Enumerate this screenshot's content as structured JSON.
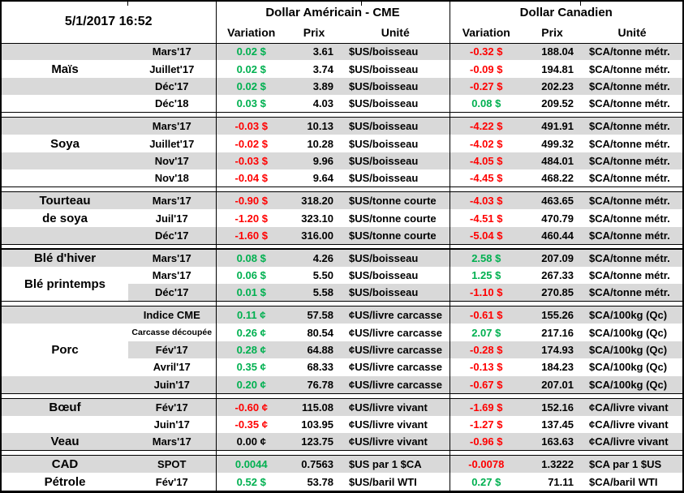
{
  "timestamp": "5/1/2017 16:52",
  "groups": {
    "us": "Dollar Américain - CME",
    "ca": "Dollar Canadien"
  },
  "columns": {
    "variation": "Variation",
    "prix": "Prix",
    "unite": "Unité"
  },
  "colors": {
    "positive": "#00B050",
    "negative": "#FF0000",
    "neutral": "#000000",
    "stripe": "#D9D9D9",
    "grid": "#000000"
  },
  "sections": [
    {
      "name": "mais",
      "rows": [
        {
          "month": "Mars'17",
          "us": {
            "var": "0.02 $",
            "dir": "pos",
            "prix": "3.61",
            "unit": "$US/boisseau"
          },
          "ca": {
            "var": "-0.32 $",
            "dir": "neg",
            "prix": "188.04",
            "unit": "$CA/tonne métr."
          }
        },
        {
          "label": {
            "text": "Maïs"
          },
          "month": "Juillet'17",
          "us": {
            "var": "0.02 $",
            "dir": "pos",
            "prix": "3.74",
            "unit": "$US/boisseau"
          },
          "ca": {
            "var": "-0.09 $",
            "dir": "neg",
            "prix": "194.81",
            "unit": "$CA/tonne métr."
          }
        },
        {
          "month": "Déc'17",
          "us": {
            "var": "0.02 $",
            "dir": "pos",
            "prix": "3.89",
            "unit": "$US/boisseau"
          },
          "ca": {
            "var": "-0.27 $",
            "dir": "neg",
            "prix": "202.23",
            "unit": "$CA/tonne métr."
          }
        },
        {
          "month": "Déc'18",
          "us": {
            "var": "0.03 $",
            "dir": "pos",
            "prix": "4.03",
            "unit": "$US/boisseau"
          },
          "ca": {
            "var": "0.08 $",
            "dir": "pos",
            "prix": "209.52",
            "unit": "$CA/tonne métr."
          }
        }
      ]
    },
    {
      "name": "soya",
      "rows": [
        {
          "month": "Mars'17",
          "us": {
            "var": "-0.03 $",
            "dir": "neg",
            "prix": "10.13",
            "unit": "$US/boisseau"
          },
          "ca": {
            "var": "-4.22 $",
            "dir": "neg",
            "prix": "491.91",
            "unit": "$CA/tonne métr."
          }
        },
        {
          "label": {
            "text": "Soya"
          },
          "month": "Juillet'17",
          "us": {
            "var": "-0.02 $",
            "dir": "neg",
            "prix": "10.28",
            "unit": "$US/boisseau"
          },
          "ca": {
            "var": "-4.02 $",
            "dir": "neg",
            "prix": "499.32",
            "unit": "$CA/tonne métr."
          }
        },
        {
          "month": "Nov'17",
          "us": {
            "var": "-0.03 $",
            "dir": "neg",
            "prix": "9.96",
            "unit": "$US/boisseau"
          },
          "ca": {
            "var": "-4.05 $",
            "dir": "neg",
            "prix": "484.01",
            "unit": "$CA/tonne métr."
          }
        },
        {
          "month": "Nov'18",
          "us": {
            "var": "-0.04 $",
            "dir": "neg",
            "prix": "9.64",
            "unit": "$US/boisseau"
          },
          "ca": {
            "var": "-4.45 $",
            "dir": "neg",
            "prix": "468.22",
            "unit": "$CA/tonne métr."
          }
        }
      ]
    },
    {
      "name": "tourteau-de-soya",
      "rows": [
        {
          "label": {
            "text": "Tourteau"
          },
          "month": "Mars'17",
          "us": {
            "var": "-0.90 $",
            "dir": "neg",
            "prix": "318.20",
            "unit": "$US/tonne courte"
          },
          "ca": {
            "var": "-4.03 $",
            "dir": "neg",
            "prix": "463.65",
            "unit": "$CA/tonne métr."
          }
        },
        {
          "label": {
            "text": "de soya"
          },
          "month": "Juil'17",
          "us": {
            "var": "-1.20 $",
            "dir": "neg",
            "prix": "323.10",
            "unit": "$US/tonne courte"
          },
          "ca": {
            "var": "-4.51 $",
            "dir": "neg",
            "prix": "470.79",
            "unit": "$CA/tonne métr."
          }
        },
        {
          "month": "Déc'17",
          "us": {
            "var": "-1.60 $",
            "dir": "neg",
            "prix": "316.00",
            "unit": "$US/tonne courte"
          },
          "ca": {
            "var": "-5.04 $",
            "dir": "neg",
            "prix": "460.44",
            "unit": "$CA/tonne métr."
          }
        }
      ]
    },
    {
      "name": "ble",
      "thick_top": true,
      "rows": [
        {
          "label": {
            "text": "Blé d'hiver"
          },
          "month": "Mars'17",
          "us": {
            "var": "0.08 $",
            "dir": "pos",
            "prix": "4.26",
            "unit": "$US/boisseau"
          },
          "ca": {
            "var": "2.58 $",
            "dir": "pos",
            "prix": "207.09",
            "unit": "$CA/tonne métr."
          }
        },
        {
          "label": {
            "text": "Blé printemps",
            "span": 2,
            "white": true
          },
          "month": "Mars'17",
          "us": {
            "var": "0.06 $",
            "dir": "pos",
            "prix": "5.50",
            "unit": "$US/boisseau"
          },
          "ca": {
            "var": "1.25 $",
            "dir": "pos",
            "prix": "267.33",
            "unit": "$CA/tonne métr."
          }
        },
        {
          "month": "Déc'17",
          "us": {
            "var": "0.01 $",
            "dir": "pos",
            "prix": "5.58",
            "unit": "$US/boisseau"
          },
          "ca": {
            "var": "-1.10 $",
            "dir": "neg",
            "prix": "270.85",
            "unit": "$CA/tonne métr."
          }
        }
      ]
    },
    {
      "name": "porc",
      "rows": [
        {
          "month": "Indice CME",
          "us": {
            "var": "0.11 ¢",
            "dir": "pos",
            "prix": "57.58",
            "unit": "¢US/livre carcasse"
          },
          "ca": {
            "var": "-0.61 $",
            "dir": "neg",
            "prix": "155.26",
            "unit": "$CA/100kg (Qc)"
          }
        },
        {
          "label": {
            "text": "Porc",
            "span": 3,
            "white": true
          },
          "month": "Carcasse découpée",
          "us": {
            "var": "0.26 ¢",
            "dir": "pos",
            "prix": "80.54",
            "unit": "¢US/livre carcasse"
          },
          "ca": {
            "var": "2.07 $",
            "dir": "pos",
            "prix": "217.16",
            "unit": "$CA/100kg (Qc)"
          }
        },
        {
          "month": "Fév'17",
          "us": {
            "var": "0.28 ¢",
            "dir": "pos",
            "prix": "64.88",
            "unit": "¢US/livre carcasse"
          },
          "ca": {
            "var": "-0.28 $",
            "dir": "neg",
            "prix": "174.93",
            "unit": "$CA/100kg (Qc)"
          }
        },
        {
          "month": "Avril'17",
          "us": {
            "var": "0.35 ¢",
            "dir": "pos",
            "prix": "68.33",
            "unit": "¢US/livre carcasse"
          },
          "ca": {
            "var": "-0.13 $",
            "dir": "neg",
            "prix": "184.23",
            "unit": "$CA/100kg (Qc)"
          }
        },
        {
          "month": "Juin'17",
          "us": {
            "var": "0.20 ¢",
            "dir": "pos",
            "prix": "76.78",
            "unit": "¢US/livre carcasse"
          },
          "ca": {
            "var": "-0.67 $",
            "dir": "neg",
            "prix": "207.01",
            "unit": "$CA/100kg (Qc)"
          }
        }
      ]
    },
    {
      "name": "boeuf-veau",
      "rows": [
        {
          "label": {
            "text": "Bœuf"
          },
          "month": "Fév'17",
          "us": {
            "var": "-0.60 ¢",
            "dir": "neg",
            "prix": "115.08",
            "unit": "¢US/livre vivant"
          },
          "ca": {
            "var": "-1.69 $",
            "dir": "neg",
            "prix": "152.16",
            "unit": "¢CA/livre vivant"
          }
        },
        {
          "month": "Juin'17",
          "us": {
            "var": "-0.35 ¢",
            "dir": "neg",
            "prix": "103.95",
            "unit": "¢US/livre vivant"
          },
          "ca": {
            "var": "-1.27 $",
            "dir": "neg",
            "prix": "137.45",
            "unit": "¢CA/livre vivant"
          }
        },
        {
          "label": {
            "text": "Veau"
          },
          "month": "Mars'17",
          "us": {
            "var": "0.00 ¢",
            "dir": "neu",
            "prix": "123.75",
            "unit": "¢US/livre vivant"
          },
          "ca": {
            "var": "-0.96 $",
            "dir": "neg",
            "prix": "163.63",
            "unit": "¢CA/livre vivant"
          }
        }
      ]
    },
    {
      "name": "cad-petrole",
      "rows": [
        {
          "label": {
            "text": "CAD"
          },
          "month": "SPOT",
          "us": {
            "var": "0.0044",
            "dir": "pos",
            "prix": "0.7563",
            "unit": "$US par 1 $CA"
          },
          "ca": {
            "var": "-0.0078",
            "dir": "neg",
            "prix": "1.3222",
            "unit": "$CA par 1 $US"
          }
        },
        {
          "label": {
            "text": "Pétrole"
          },
          "month": "Fév'17",
          "us": {
            "var": "0.52 $",
            "dir": "pos",
            "prix": "53.78",
            "unit": "$US/baril WTI"
          },
          "ca": {
            "var": "0.27 $",
            "dir": "pos",
            "prix": "71.11",
            "unit": "$CA/baril WTI"
          }
        }
      ]
    }
  ]
}
